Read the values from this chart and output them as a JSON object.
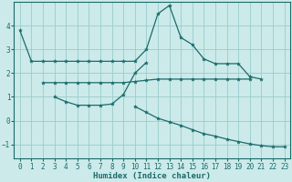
{
  "xlabel": "Humidex (Indice chaleur)",
  "bg_color": "#cceaea",
  "grid_color": "#99cccc",
  "line_color": "#1a6b6b",
  "xlim": [
    -0.5,
    23.5
  ],
  "ylim": [
    -1.6,
    5.0
  ],
  "xticks": [
    0,
    1,
    2,
    3,
    4,
    5,
    6,
    7,
    8,
    9,
    10,
    11,
    12,
    13,
    14,
    15,
    16,
    17,
    18,
    19,
    20,
    21,
    22,
    23
  ],
  "yticks": [
    -1,
    0,
    1,
    2,
    3,
    4
  ],
  "lines": [
    {
      "x": [
        0,
        1,
        2,
        3,
        4,
        5,
        6,
        7,
        8,
        9,
        10,
        11,
        12,
        13,
        14,
        15,
        16,
        17,
        18,
        19,
        20,
        21
      ],
      "y": [
        3.8,
        2.5,
        2.5,
        2.5,
        2.5,
        2.5,
        2.5,
        2.5,
        2.5,
        2.5,
        2.5,
        3.0,
        4.5,
        4.85,
        3.5,
        3.2,
        2.6,
        2.4,
        2.4,
        2.4,
        1.85,
        1.75
      ]
    },
    {
      "x": [
        2,
        3,
        4,
        5,
        6,
        7,
        8,
        9,
        10,
        11,
        12,
        13,
        14,
        15,
        16,
        17,
        18,
        19,
        20
      ],
      "y": [
        1.6,
        1.6,
        1.6,
        1.6,
        1.6,
        1.6,
        1.6,
        1.6,
        1.65,
        1.7,
        1.75,
        1.75,
        1.75,
        1.75,
        1.75,
        1.75,
        1.75,
        1.75,
        1.75
      ]
    },
    {
      "x": [
        3,
        4,
        5,
        6,
        7,
        8,
        9,
        10,
        11
      ],
      "y": [
        1.0,
        0.8,
        0.65,
        0.65,
        0.65,
        0.7,
        1.1,
        2.0,
        2.45
      ]
    },
    {
      "x": [
        10,
        11,
        12,
        13,
        14,
        15,
        16,
        17,
        18,
        19,
        20,
        21,
        22,
        23
      ],
      "y": [
        0.6,
        0.35,
        0.1,
        -0.05,
        -0.2,
        -0.38,
        -0.55,
        -0.65,
        -0.78,
        -0.88,
        -0.98,
        -1.05,
        -1.1,
        -1.1
      ]
    }
  ]
}
